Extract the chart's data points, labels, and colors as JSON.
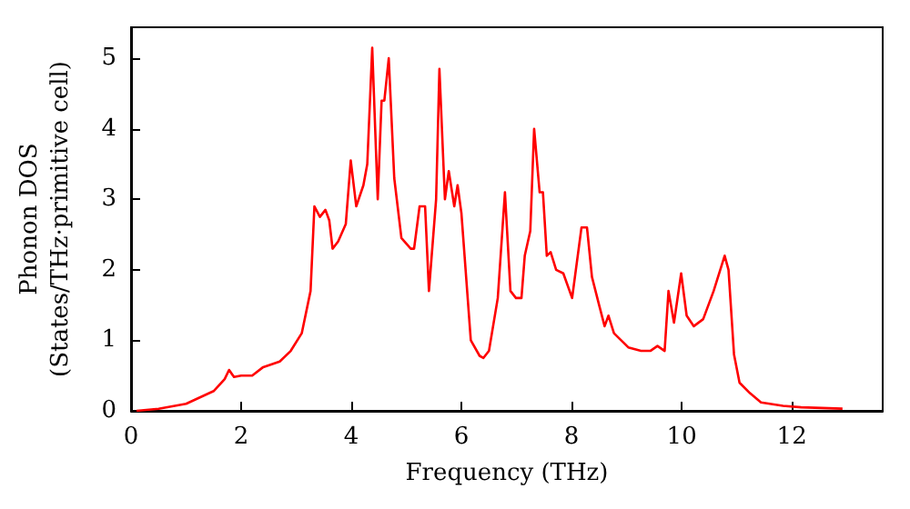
{
  "chart_data": {
    "type": "line",
    "xlabel": "Frequency (THz)",
    "ylabel": "Phonon DOS\n(States/THz·primitive cell)",
    "x": [
      0.1,
      0.5,
      1.0,
      1.5,
      1.7,
      1.78,
      1.87,
      2.0,
      2.2,
      2.4,
      2.7,
      2.9,
      3.1,
      3.26,
      3.33,
      3.43,
      3.53,
      3.6,
      3.66,
      3.76,
      3.9,
      3.99,
      4.09,
      4.22,
      4.29,
      4.38,
      4.48,
      4.55,
      4.6,
      4.68,
      4.78,
      4.91,
      5.08,
      5.14,
      5.24,
      5.34,
      5.41,
      5.54,
      5.6,
      5.7,
      5.77,
      5.87,
      5.93,
      6.0,
      6.17,
      6.33,
      6.4,
      6.5,
      6.66,
      6.79,
      6.89,
      6.99,
      7.09,
      7.15,
      7.25,
      7.32,
      7.42,
      7.48,
      7.55,
      7.62,
      7.72,
      7.85,
      8.01,
      8.18,
      8.28,
      8.37,
      8.5,
      8.6,
      8.67,
      8.77,
      9.03,
      9.26,
      9.43,
      9.56,
      9.69,
      9.76,
      9.86,
      9.99,
      10.09,
      10.22,
      10.39,
      10.58,
      10.78,
      10.85,
      10.95,
      11.05,
      11.24,
      11.44,
      11.84,
      12.17,
      12.92
    ],
    "series": [
      {
        "color": "#ff0000",
        "values": [
          0,
          0.03,
          0.1,
          0.28,
          0.45,
          0.58,
          0.48,
          0.5,
          0.5,
          0.62,
          0.7,
          0.85,
          1.1,
          1.7,
          2.9,
          2.75,
          2.85,
          2.7,
          2.3,
          2.4,
          2.65,
          3.55,
          2.9,
          3.2,
          3.5,
          5.15,
          3.0,
          4.4,
          4.4,
          5.0,
          3.3,
          2.45,
          2.3,
          2.3,
          2.9,
          2.9,
          1.7,
          3.0,
          4.85,
          3.0,
          3.4,
          2.9,
          3.2,
          2.8,
          1.0,
          0.78,
          0.75,
          0.85,
          1.6,
          3.1,
          1.7,
          1.6,
          1.6,
          2.2,
          2.55,
          4.0,
          3.1,
          3.1,
          2.2,
          2.25,
          2.0,
          1.95,
          1.6,
          2.6,
          2.6,
          1.9,
          1.5,
          1.2,
          1.35,
          1.1,
          0.9,
          0.85,
          0.85,
          0.92,
          0.85,
          1.7,
          1.25,
          1.95,
          1.35,
          1.2,
          1.3,
          1.7,
          2.2,
          2.0,
          0.8,
          0.4,
          0.25,
          0.12,
          0.07,
          0.05,
          0.03
        ]
      }
    ],
    "xlim": [
      0,
      13.65
    ],
    "xticks": [
      0,
      2,
      4,
      6,
      8,
      10,
      12
    ],
    "ylim": [
      0,
      5.44
    ],
    "yticks": [
      0,
      1,
      2,
      3,
      4,
      5
    ],
    "marker": "none",
    "line_style": "solid"
  }
}
